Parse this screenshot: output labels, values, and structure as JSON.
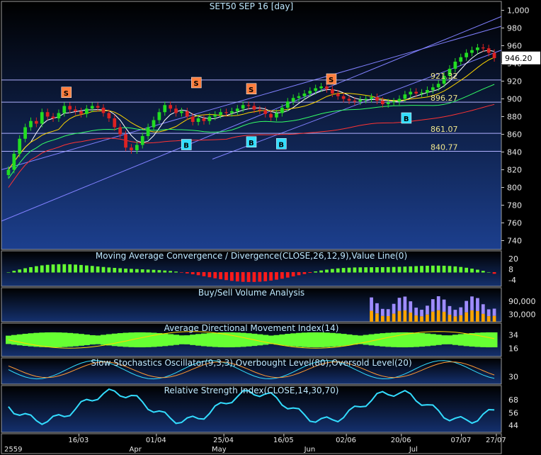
{
  "chart_data": {
    "type": "candlestick",
    "title": "SET50 SEP 16  [day]",
    "last_price_label": "946.20",
    "price_axis": {
      "ylim": [
        730,
        1010
      ],
      "ticks": [
        "1,000",
        "980",
        "960",
        "940",
        "920",
        "900",
        "880",
        "860",
        "840",
        "820",
        "800",
        "780",
        "760",
        "740"
      ]
    },
    "levels": [
      {
        "label": "921.32",
        "value": 921.32
      },
      {
        "label": "896.27",
        "value": 896.27
      },
      {
        "label": "861.07",
        "value": 861.07
      },
      {
        "label": "840.77",
        "value": 840.77
      }
    ],
    "signals": [
      {
        "type": "S",
        "x": 0.13,
        "price": 907
      },
      {
        "type": "S",
        "x": 0.39,
        "price": 918
      },
      {
        "type": "S",
        "x": 0.5,
        "price": 911
      },
      {
        "type": "S",
        "x": 0.66,
        "price": 922
      },
      {
        "type": "B",
        "x": 0.37,
        "price": 848
      },
      {
        "type": "B",
        "x": 0.5,
        "price": 851
      },
      {
        "type": "B",
        "x": 0.56,
        "price": 849
      },
      {
        "type": "B",
        "x": 0.81,
        "price": 878
      }
    ],
    "closes": [
      820,
      838,
      855,
      868,
      875,
      872,
      885,
      880,
      878,
      884,
      892,
      888,
      886,
      883,
      889,
      892,
      890,
      884,
      878,
      868,
      860,
      845,
      842,
      848,
      858,
      868,
      876,
      885,
      893,
      889,
      884,
      886,
      880,
      874,
      878,
      875,
      880,
      882,
      885,
      884,
      886,
      889,
      893,
      892,
      888,
      887,
      883,
      879,
      884,
      890,
      897,
      901,
      903,
      906,
      909,
      912,
      914,
      911,
      906,
      903,
      900,
      898,
      897,
      899,
      900,
      902,
      898,
      894,
      896,
      897,
      900,
      905,
      908,
      906,
      907,
      910,
      913,
      917,
      926,
      934,
      942,
      947,
      952,
      955,
      958,
      957,
      952,
      946
    ],
    "x_axis": {
      "dates": [
        "16/03",
        "01/04",
        "25/04",
        "16/05",
        "02/06",
        "20/06",
        "07/07",
        "27/07"
      ],
      "months": [
        "2559",
        "Apr",
        "May",
        "Jun",
        "Jul"
      ]
    },
    "panels": [
      {
        "id": "macd",
        "title": "Moving Average Convergence / Divergence(CLOSE,26,12,9),Value Line(0)",
        "ticks": [
          "20",
          "8",
          "-4"
        ]
      },
      {
        "id": "volume",
        "title": "Buy/Sell Volume Analysis",
        "ticks": [
          "90,000",
          "30,000"
        ]
      },
      {
        "id": "adx",
        "title": "Average Directional Movement Index(14)",
        "ticks": [
          "34",
          "16"
        ]
      },
      {
        "id": "stoch",
        "title": "Slow Stochastics Oscillator(9,3,3),Overbought Level(80),Oversold Level(20)",
        "ticks": [
          "30"
        ]
      },
      {
        "id": "rsi",
        "title": "Relative Strength Index(CLOSE,14,30,70)",
        "ticks": [
          "68",
          "56",
          "44"
        ]
      }
    ],
    "colors": {
      "bg_top": "#000000",
      "bg_bottom": "#1c3f8e",
      "up": "#22dd22",
      "down": "#dd2222",
      "ma": "#ffffff",
      "trend": "#8080ff",
      "signal_s": "#ff7f3f",
      "signal_b": "#33ddff",
      "level": "#f0e68c",
      "rsi": "#33ddff",
      "macd_up": "#66ff33",
      "macd_dn": "#ff1a1a",
      "vol_buy": "#ffa500",
      "vol_sell": "#9f8cff"
    }
  }
}
